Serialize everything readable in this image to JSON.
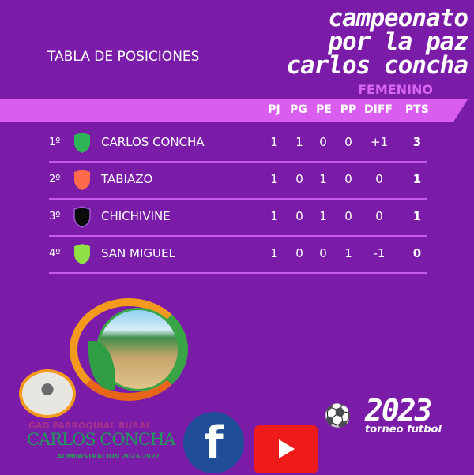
{
  "header": {
    "subtitle": "TABLA DE POSICIONES",
    "title_lines": [
      "campeonato",
      "por la paz",
      "carlos concha"
    ],
    "category": "FEMENINO"
  },
  "columns": [
    "PJ",
    "PG",
    "PE",
    "PP",
    "DIFF",
    "PTS"
  ],
  "rows": [
    {
      "pos": "1º",
      "team": "CARLOS CONCHA",
      "shield_color": "#2fb457",
      "stats": [
        "1",
        "1",
        "0",
        "0",
        "+1",
        "3"
      ]
    },
    {
      "pos": "2º",
      "team": "TABIAZO",
      "shield_color": "#ff6a4a",
      "stats": [
        "1",
        "0",
        "1",
        "0",
        "0",
        "1"
      ]
    },
    {
      "pos": "3º",
      "team": "CHICHIVINE",
      "shield_color": "#0b0b0b",
      "stats": [
        "1",
        "0",
        "1",
        "0",
        "0",
        "1"
      ]
    },
    {
      "pos": "4º",
      "team": "SAN MIGUEL",
      "shield_color": "#8ee045",
      "stats": [
        "1",
        "0",
        "0",
        "1",
        "-1",
        "0"
      ]
    }
  ],
  "footer": {
    "gad_line1": "GAD PARROQUIAL RURAL",
    "gad_line2": "CARLOS CONCHA",
    "gad_line3": "ADMINISTRACION 2023-2027",
    "year": "2023",
    "tagline": "torneo futbol"
  },
  "colors": {
    "background": "#7a1ca8",
    "band": "#d95ef0",
    "accent": "#d965f2"
  }
}
